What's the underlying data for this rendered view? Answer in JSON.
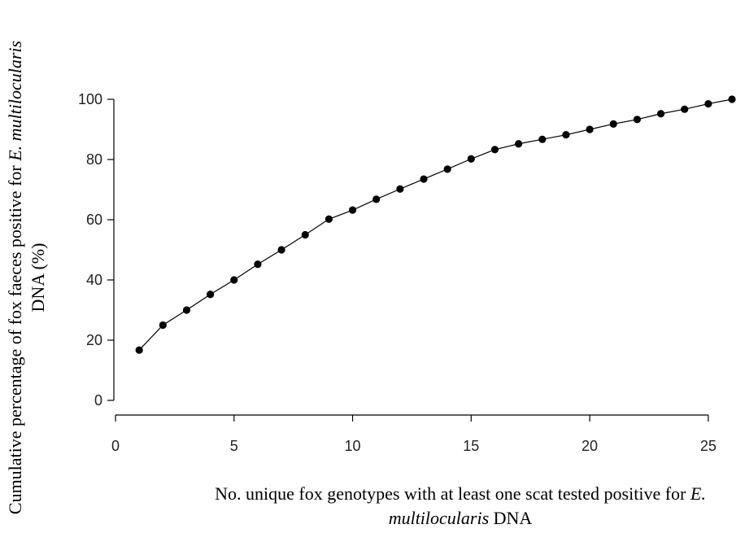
{
  "chart_data": {
    "type": "line",
    "title": "",
    "xlabel_parts": [
      {
        "text": "No. unique fox genotypes with at least one scat tested positive for ",
        "italic": false
      },
      {
        "text": "E.",
        "italic": true
      }
    ],
    "xlabel_line2_parts": [
      {
        "text": "multilocularis",
        "italic": true
      },
      {
        "text": " DNA",
        "italic": false
      }
    ],
    "ylabel_parts": [
      {
        "text": "Cumulative percentage of fox faeces positive for ",
        "italic": false
      },
      {
        "text": "E. multilocularis",
        "italic": true
      }
    ],
    "ylabel_line2_parts": [
      {
        "text": "DNA (%)",
        "italic": false
      }
    ],
    "xlim": [
      0,
      26
    ],
    "ylim": [
      0,
      100
    ],
    "xticks": [
      0,
      5,
      10,
      15,
      20,
      25
    ],
    "yticks": [
      0,
      20,
      40,
      60,
      80,
      100
    ],
    "grid": false,
    "series": [
      {
        "x": [
          1,
          2,
          3,
          4,
          5,
          6,
          7,
          8,
          9,
          10,
          11,
          12,
          13,
          14,
          15,
          16,
          17,
          18,
          19,
          20,
          21,
          22,
          23,
          24,
          25,
          26
        ],
        "values": [
          16.7,
          25.0,
          30.0,
          35.2,
          40.0,
          45.2,
          50.0,
          55.0,
          60.2,
          63.2,
          66.8,
          70.2,
          73.5,
          76.8,
          80.2,
          83.3,
          85.2,
          86.7,
          88.2,
          90.0,
          91.8,
          93.3,
          95.2,
          96.7,
          98.5,
          100.0
        ]
      }
    ],
    "colors": {
      "line": "#000000",
      "marker": "#000000",
      "axis": "#000000"
    }
  }
}
